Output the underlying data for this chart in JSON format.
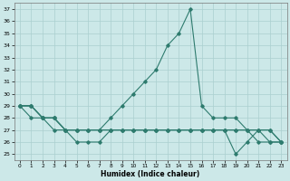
{
  "xlabel": "Humidex (Indice chaleur)",
  "bg_color": "#cce8e8",
  "grid_color": "#aacfcf",
  "line_color": "#2e7b6e",
  "xlim": [
    -0.5,
    23.5
  ],
  "ylim": [
    24.5,
    37.5
  ],
  "yticks": [
    25,
    26,
    27,
    28,
    29,
    30,
    31,
    32,
    33,
    34,
    35,
    36,
    37
  ],
  "xticks": [
    0,
    1,
    2,
    3,
    4,
    5,
    6,
    7,
    8,
    9,
    10,
    11,
    12,
    13,
    14,
    15,
    16,
    17,
    18,
    19,
    20,
    21,
    22,
    23
  ],
  "series": [
    [
      29,
      29,
      28,
      28,
      27,
      27,
      27,
      27,
      28,
      29,
      30,
      31,
      32,
      34,
      35,
      37,
      29,
      28,
      28,
      28,
      27,
      27,
      27,
      26
    ],
    [
      29,
      29,
      28,
      28,
      27,
      27,
      27,
      27,
      27,
      27,
      27,
      27,
      27,
      27,
      27,
      27,
      27,
      27,
      27,
      27,
      27,
      27,
      27,
      26
    ],
    [
      29,
      29,
      28,
      28,
      27,
      27,
      27,
      27,
      27,
      27,
      27,
      27,
      27,
      27,
      27,
      27,
      27,
      27,
      27,
      27,
      27,
      26,
      26,
      26
    ],
    [
      29,
      28,
      28,
      27,
      27,
      26,
      26,
      26,
      27,
      27,
      27,
      27,
      27,
      27,
      27,
      27,
      27,
      27,
      27,
      25,
      26,
      27,
      26,
      26
    ]
  ]
}
